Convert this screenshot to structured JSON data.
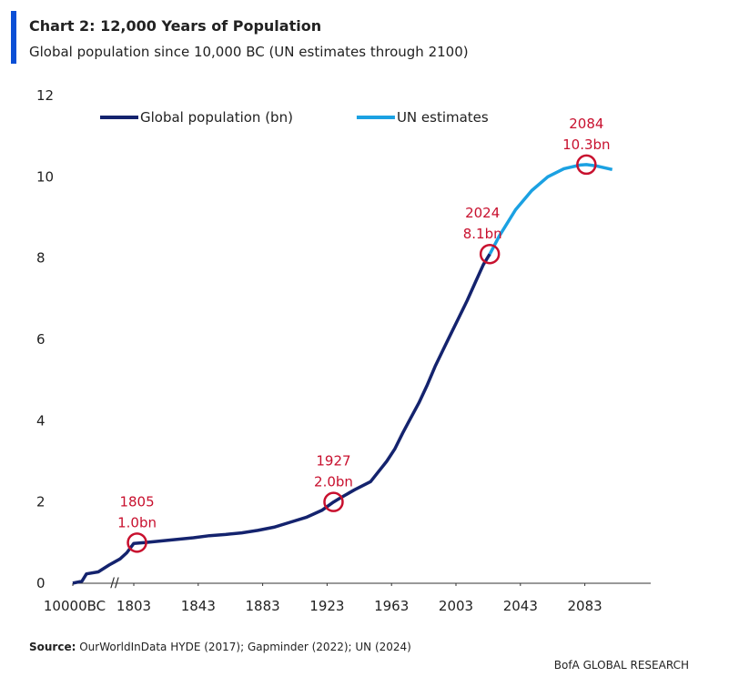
{
  "chart_data": {
    "type": "line",
    "title": "Chart 2: 12,000 Years of Population",
    "subtitle": "Global population since 10,000 BC (UN estimates through 2100)",
    "source_label": "Source:",
    "source": "OurWorldInData HYDE (2017); Gapminder (2022); UN (2024)",
    "footer": "BofA GLOBAL RESEARCH",
    "ylim": [
      0,
      12
    ],
    "yticks": [
      0,
      2,
      4,
      6,
      8,
      10,
      12
    ],
    "xlim": [
      -10000,
      2130
    ],
    "xticks": [
      {
        "value": -10000,
        "label": "10000BC"
      },
      1803,
      1843,
      1883,
      1923,
      1963,
      2003,
      2043,
      2083
    ],
    "grid": false,
    "legend": "top-left",
    "series": [
      {
        "name": "Global population (bn)",
        "color": "#14236e",
        "x": [
          -10000,
          -1000,
          1,
          1000,
          1500,
          1700,
          1750,
          1803,
          1810,
          1820,
          1830,
          1840,
          1850,
          1860,
          1870,
          1880,
          1890,
          1900,
          1910,
          1920,
          1927,
          1930,
          1940,
          1950,
          1955,
          1960,
          1965,
          1970,
          1975,
          1980,
          1985,
          1990,
          1995,
          2000,
          2005,
          2010,
          2015,
          2020,
          2024
        ],
        "values": [
          0.002,
          0.05,
          0.23,
          0.28,
          0.45,
          0.6,
          0.75,
          0.98,
          1.0,
          1.04,
          1.08,
          1.12,
          1.17,
          1.2,
          1.24,
          1.3,
          1.38,
          1.5,
          1.62,
          1.8,
          2.0,
          2.07,
          2.3,
          2.5,
          2.75,
          3.0,
          3.3,
          3.7,
          4.07,
          4.44,
          4.86,
          5.33,
          5.74,
          6.15,
          6.55,
          6.96,
          7.4,
          7.84,
          8.1
        ]
      },
      {
        "name": "UN estimates",
        "color": "#1ba1e2",
        "x": [
          2024,
          2030,
          2040,
          2050,
          2060,
          2070,
          2080,
          2084,
          2090,
          2100
        ],
        "values": [
          8.1,
          8.55,
          9.19,
          9.66,
          10.0,
          10.2,
          10.29,
          10.3,
          10.27,
          10.18
        ]
      }
    ],
    "annotations": [
      {
        "x": 1805,
        "y": 1.0,
        "year_label": "1805",
        "value_label": "1.0bn"
      },
      {
        "x": 1927,
        "y": 2.0,
        "year_label": "1927",
        "value_label": "2.0bn"
      },
      {
        "x": 2024,
        "y": 8.1,
        "year_label": "2024",
        "value_label": "8.1bn"
      },
      {
        "x": 2084,
        "y": 10.3,
        "year_label": "2084",
        "value_label": "10.3bn"
      }
    ]
  }
}
